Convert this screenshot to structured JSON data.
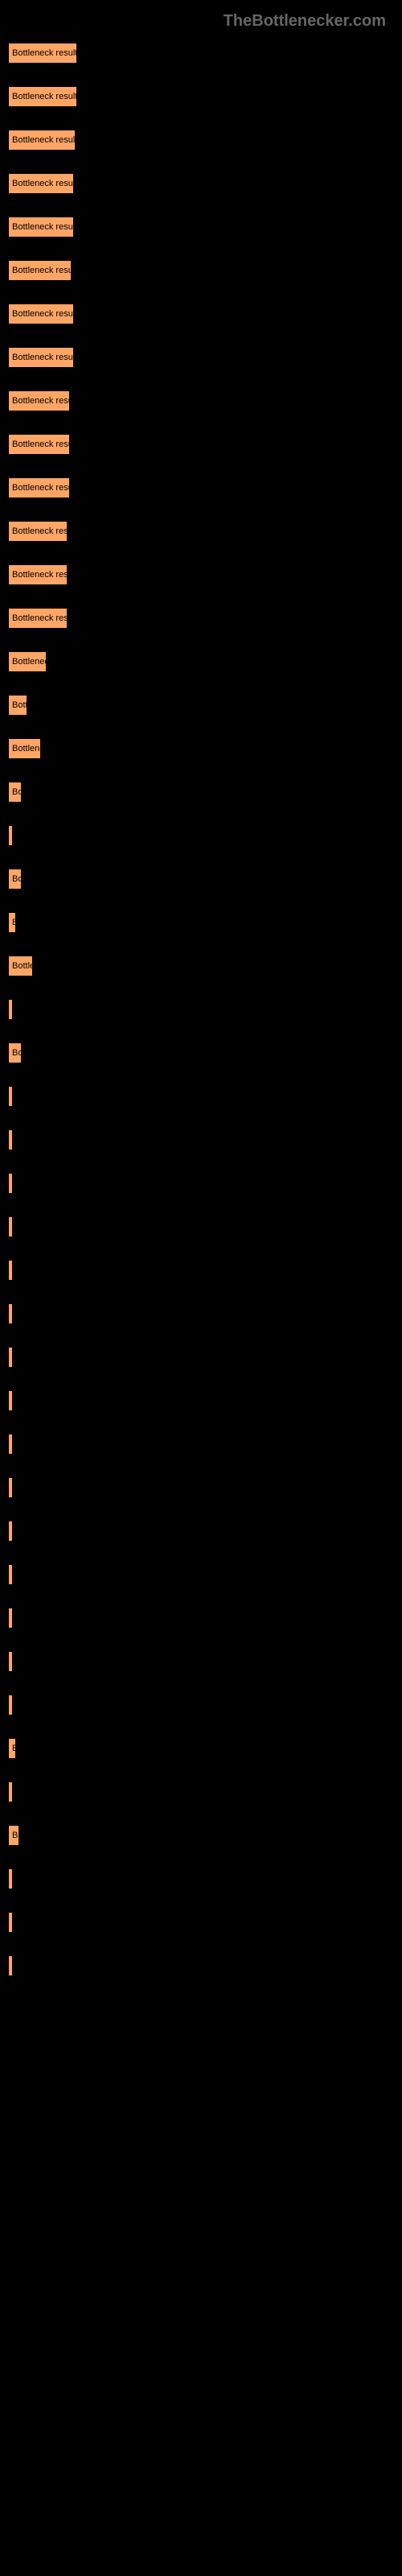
{
  "header": {
    "logo": "TheBottlenecker.com"
  },
  "chart": {
    "type": "bar",
    "bar_color": "#ffa565",
    "background_color": "#000000",
    "text_color": "#ffffff",
    "bar_text_color": "#000000",
    "max_width": 480,
    "bars": [
      {
        "label": "",
        "bar_text": "Bottleneck result",
        "width_pct": 18
      },
      {
        "label": "",
        "bar_text": "Bottleneck result",
        "width_pct": 18
      },
      {
        "label": "",
        "bar_text": "Bottleneck result",
        "width_pct": 17.5
      },
      {
        "label": "",
        "bar_text": "Bottleneck result",
        "width_pct": 17
      },
      {
        "label": "",
        "bar_text": "Bottleneck result",
        "width_pct": 17
      },
      {
        "label": "",
        "bar_text": "Bottleneck resul",
        "width_pct": 16.5
      },
      {
        "label": "",
        "bar_text": "Bottleneck result",
        "width_pct": 17
      },
      {
        "label": "",
        "bar_text": "Bottleneck result",
        "width_pct": 17
      },
      {
        "label": "",
        "bar_text": "Bottleneck resu",
        "width_pct": 16
      },
      {
        "label": "",
        "bar_text": "Bottleneck resu",
        "width_pct": 16
      },
      {
        "label": "",
        "bar_text": "Bottleneck resu",
        "width_pct": 16
      },
      {
        "label": "",
        "bar_text": "Bottleneck res",
        "width_pct": 15.5
      },
      {
        "label": "",
        "bar_text": "Bottleneck res",
        "width_pct": 15.5
      },
      {
        "label": "",
        "bar_text": "Bottleneck res",
        "width_pct": 15.5
      },
      {
        "label": "",
        "bar_text": "Bottlenec",
        "width_pct": 10
      },
      {
        "label": "",
        "bar_text": "Bott",
        "width_pct": 5
      },
      {
        "label": "",
        "bar_text": "Bottlene",
        "width_pct": 8.5
      },
      {
        "label": "",
        "bar_text": "Bo",
        "width_pct": 3.5
      },
      {
        "label": "",
        "bar_text": "",
        "width_pct": 0.8
      },
      {
        "label": "",
        "bar_text": "Bo",
        "width_pct": 3.5
      },
      {
        "label": "",
        "bar_text": "B",
        "width_pct": 2
      },
      {
        "label": "",
        "bar_text": "Bottle",
        "width_pct": 6.5
      },
      {
        "label": "",
        "bar_text": "",
        "width_pct": 0.8
      },
      {
        "label": "",
        "bar_text": "Bo",
        "width_pct": 3.5
      },
      {
        "label": "",
        "bar_text": "",
        "width_pct": 0.5
      },
      {
        "label": "",
        "bar_text": "",
        "width_pct": 0.5
      },
      {
        "label": "",
        "bar_text": "",
        "width_pct": 0.5
      },
      {
        "label": "",
        "bar_text": "",
        "width_pct": 0.5
      },
      {
        "label": "",
        "bar_text": "",
        "width_pct": 0.5
      },
      {
        "label": "",
        "bar_text": "",
        "width_pct": 0.5
      },
      {
        "label": "",
        "bar_text": "",
        "width_pct": 0.5
      },
      {
        "label": "",
        "bar_text": "",
        "width_pct": 0.5
      },
      {
        "label": "",
        "bar_text": "",
        "width_pct": 0.5
      },
      {
        "label": "",
        "bar_text": "",
        "width_pct": 1.2
      },
      {
        "label": "",
        "bar_text": "",
        "width_pct": 0.5
      },
      {
        "label": "",
        "bar_text": "",
        "width_pct": 0.5
      },
      {
        "label": "",
        "bar_text": "",
        "width_pct": 0.5
      },
      {
        "label": "",
        "bar_text": "",
        "width_pct": 0.5
      },
      {
        "label": "",
        "bar_text": "",
        "width_pct": 1.2
      },
      {
        "label": "",
        "bar_text": "B",
        "width_pct": 2
      },
      {
        "label": "",
        "bar_text": "",
        "width_pct": 0.5
      },
      {
        "label": "",
        "bar_text": "Bo",
        "width_pct": 3
      },
      {
        "label": "",
        "bar_text": "",
        "width_pct": 0.5
      },
      {
        "label": "",
        "bar_text": "",
        "width_pct": 0.5
      },
      {
        "label": "",
        "bar_text": "",
        "width_pct": 0.5
      }
    ]
  }
}
